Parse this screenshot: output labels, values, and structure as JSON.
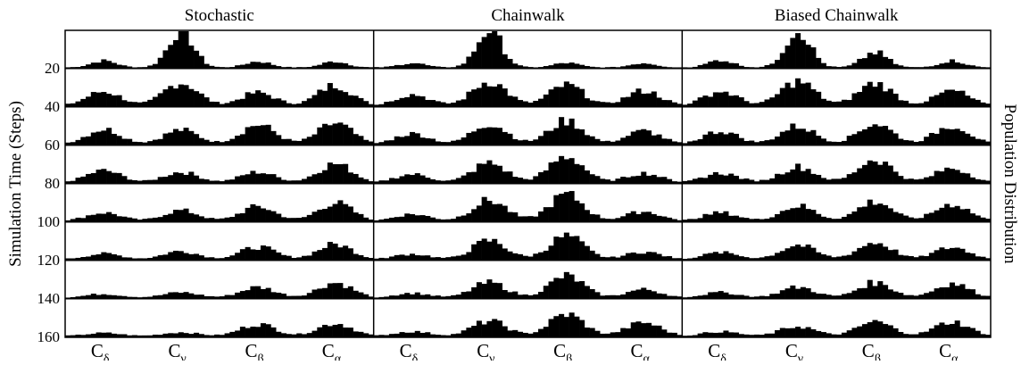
{
  "chart_data": {
    "type": "bar",
    "title": "",
    "ylabel": "Simulation Time (Steps)",
    "right_label": "Population Distribution",
    "panels": [
      {
        "name": "Stochastic"
      },
      {
        "name": "Chainwalk"
      },
      {
        "name": "Biased Chainwalk"
      }
    ],
    "rows": [
      "20",
      "40",
      "60",
      "80",
      "100",
      "120",
      "140",
      "160"
    ],
    "x_ticks": [
      {
        "base": "C",
        "sub": "δ"
      },
      {
        "base": "C",
        "sub": "γ"
      },
      {
        "base": "C",
        "sub": "β"
      },
      {
        "base": "C",
        "sub": "α"
      }
    ],
    "bins_per_panel": 60,
    "ylim": [
      0,
      1
    ],
    "grid": false,
    "series_color": "#000000",
    "peak_heights": {
      "Stochastic": [
        [
          0.18,
          1.0,
          0.16,
          0.16
        ],
        [
          0.38,
          0.62,
          0.35,
          0.55
        ],
        [
          0.4,
          0.38,
          0.52,
          0.55
        ],
        [
          0.32,
          0.28,
          0.28,
          0.5
        ],
        [
          0.22,
          0.28,
          0.38,
          0.48
        ],
        [
          0.15,
          0.22,
          0.33,
          0.4
        ],
        [
          0.1,
          0.14,
          0.28,
          0.4
        ],
        [
          0.08,
          0.1,
          0.32,
          0.34
        ]
      ],
      "Chainwalk": [
        [
          0.12,
          1.0,
          0.12,
          0.12
        ],
        [
          0.3,
          0.65,
          0.55,
          0.4
        ],
        [
          0.28,
          0.55,
          0.62,
          0.35
        ],
        [
          0.22,
          0.52,
          0.7,
          0.25
        ],
        [
          0.18,
          0.55,
          0.7,
          0.25
        ],
        [
          0.14,
          0.5,
          0.62,
          0.2
        ],
        [
          0.12,
          0.4,
          0.58,
          0.22
        ],
        [
          0.12,
          0.4,
          0.58,
          0.36
        ]
      ],
      "Biased Chainwalk": [
        [
          0.2,
          1.0,
          0.4,
          0.18
        ],
        [
          0.38,
          0.65,
          0.6,
          0.4
        ],
        [
          0.35,
          0.48,
          0.55,
          0.5
        ],
        [
          0.25,
          0.42,
          0.62,
          0.38
        ],
        [
          0.22,
          0.4,
          0.52,
          0.45
        ],
        [
          0.18,
          0.38,
          0.45,
          0.32
        ],
        [
          0.14,
          0.28,
          0.4,
          0.38
        ],
        [
          0.12,
          0.26,
          0.38,
          0.38
        ]
      ]
    }
  }
}
